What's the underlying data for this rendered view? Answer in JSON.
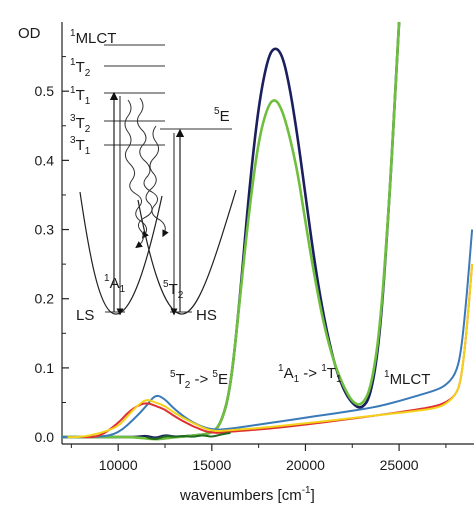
{
  "chart_data": {
    "type": "line",
    "title": "",
    "xlabel": "wavenumbers [cm",
    "xlabel_sup": "-1",
    "xlabel_end": "]",
    "ylabel": "OD",
    "xlim": [
      7000,
      29000
    ],
    "ylim": [
      -0.01,
      0.6
    ],
    "x_ticks": [
      10000,
      15000,
      20000,
      25000
    ],
    "x_tick_labels": [
      "10000",
      "15000",
      "20000",
      "25000"
    ],
    "y_ticks": [
      0.0,
      0.1,
      0.2,
      0.3,
      0.4,
      0.5
    ],
    "y_tick_labels": [
      "0.0",
      "0.1",
      "0.2",
      "0.3",
      "0.4",
      "0.5"
    ],
    "grid": false,
    "series": [
      {
        "color": "#1b1f5e",
        "x": [
          7000,
          8000,
          9000,
          10000,
          11000,
          11500,
          12000,
          12500,
          13000,
          14000,
          15000,
          15500,
          16000,
          16500,
          17000,
          17500,
          18000,
          18400,
          18800,
          19200,
          19600,
          20000,
          20500,
          21000,
          21500,
          22000,
          22500,
          23000,
          23500,
          24000,
          24500,
          24800,
          25000
        ],
        "y": [
          0.0,
          0.0,
          0.0,
          0.0,
          0.0,
          0.002,
          -0.002,
          0.003,
          0.0,
          0.002,
          0.005,
          0.02,
          0.07,
          0.2,
          0.36,
          0.48,
          0.55,
          0.565,
          0.55,
          0.5,
          0.43,
          0.35,
          0.25,
          0.17,
          0.11,
          0.07,
          0.048,
          0.04,
          0.06,
          0.15,
          0.35,
          0.5,
          0.62
        ]
      },
      {
        "color": "#6fbf3f",
        "x": [
          7000,
          9000,
          11000,
          12000,
          13000,
          14000,
          15000,
          15500,
          16000,
          16500,
          17000,
          17500,
          18000,
          18400,
          18800,
          19200,
          19600,
          20000,
          20500,
          21000,
          21500,
          22000,
          22500,
          23000,
          23500,
          24000,
          24500,
          24800,
          25000
        ],
        "y": [
          0.0,
          0.0,
          0.0,
          -0.004,
          0.0,
          0.002,
          0.005,
          0.02,
          0.07,
          0.2,
          0.33,
          0.43,
          0.48,
          0.49,
          0.47,
          0.43,
          0.38,
          0.31,
          0.23,
          0.16,
          0.11,
          0.075,
          0.05,
          0.045,
          0.07,
          0.16,
          0.35,
          0.5,
          0.62
        ]
      },
      {
        "color": "#3a7ab8",
        "x": [
          7000,
          9000,
          10000,
          11000,
          11500,
          12000,
          12500,
          13000,
          14000,
          15000,
          16000,
          17000,
          18000,
          19000,
          20000,
          21000,
          22000,
          23000,
          24000,
          25000,
          26000,
          27000,
          27500,
          28000,
          28300,
          28600,
          28900
        ],
        "y": [
          0.0,
          0.0,
          0.005,
          0.03,
          0.045,
          0.062,
          0.055,
          0.04,
          0.02,
          0.01,
          0.012,
          0.016,
          0.02,
          0.024,
          0.028,
          0.032,
          0.036,
          0.04,
          0.045,
          0.052,
          0.06,
          0.068,
          0.075,
          0.09,
          0.12,
          0.2,
          0.3
        ]
      },
      {
        "color": "#e03030",
        "x": [
          8000,
          9000,
          10000,
          10500,
          11000,
          11500,
          12000,
          12500,
          13000,
          14000,
          15000,
          16000,
          18000,
          20000,
          22000,
          24000,
          26000,
          27000,
          27500,
          28000,
          28300,
          28600,
          28900
        ],
        "y": [
          0.0,
          0.0,
          0.02,
          0.035,
          0.045,
          0.05,
          0.045,
          0.04,
          0.03,
          0.015,
          0.005,
          0.008,
          0.012,
          0.018,
          0.025,
          0.032,
          0.04,
          0.045,
          0.05,
          0.06,
          0.08,
          0.15,
          0.25
        ]
      },
      {
        "color": "#f2d21a",
        "x": [
          7300,
          8000,
          9000,
          10000,
          10500,
          11000,
          11500,
          12000,
          12500,
          13000,
          14000,
          15000,
          16000,
          18000,
          20000,
          22000,
          24000,
          26000,
          27000,
          27500,
          28000,
          28300,
          28600,
          28900
        ],
        "y": [
          0.0,
          0.0,
          0.005,
          0.015,
          0.03,
          0.045,
          0.055,
          0.05,
          0.045,
          0.035,
          0.02,
          0.008,
          0.01,
          0.014,
          0.02,
          0.026,
          0.032,
          0.038,
          0.042,
          0.048,
          0.06,
          0.08,
          0.15,
          0.25
        ]
      },
      {
        "color": "#1f6a1f",
        "x": [
          11500,
          12000,
          12500,
          13000,
          13500,
          14000,
          14500,
          15000,
          15500,
          16000
        ],
        "y": [
          0.0,
          -0.004,
          0.002,
          0.0,
          0.002,
          0.0,
          0.003,
          0.0,
          0.004,
          0.006
        ]
      }
    ],
    "annotations": [
      {
        "text": "T",
        "pre_sup": "5",
        "sub": "2",
        "mid": " -> ",
        "pre_sup2": "5",
        "text2": "E"
      },
      {
        "text": "A",
        "pre_sup": "1",
        "sub": "1",
        "mid": " -> ",
        "pre_sup2": "1",
        "text2": "T",
        "sub2": "1"
      },
      {
        "text": "MLCT",
        "pre_sup": "1"
      }
    ]
  },
  "inset": {
    "levels": [
      {
        "pre_sup": "1",
        "text": "MLCT",
        "sub": ""
      },
      {
        "pre_sup": "1",
        "text": "T",
        "sub": "2"
      },
      {
        "pre_sup": "1",
        "text": "T",
        "sub": "1"
      },
      {
        "pre_sup": "3",
        "text": "T",
        "sub": "2"
      },
      {
        "pre_sup": "3",
        "text": "T",
        "sub": "1"
      }
    ],
    "level_5e": {
      "pre_sup": "5",
      "text": "E",
      "sub": ""
    },
    "ground_ls": {
      "pre_sup": "1",
      "text": "A",
      "sub": "1"
    },
    "ground_hs": {
      "pre_sup": "5",
      "text": "T",
      "sub": "2"
    },
    "ls_label": "LS",
    "hs_label": "HS"
  }
}
